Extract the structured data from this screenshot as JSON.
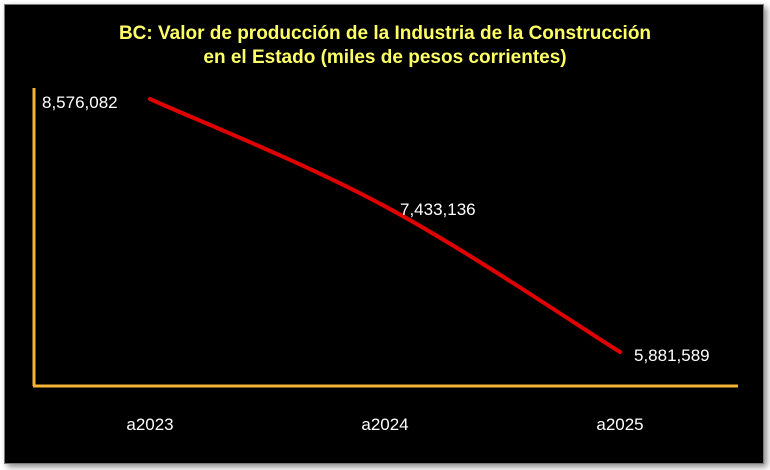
{
  "chart_data": {
    "type": "line",
    "title_lines": [
      "BC: Valor de producción de la Industria de la Construcción",
      "en el Estado (miles de pesos corrientes)"
    ],
    "categories": [
      "a2023",
      "a2024",
      "a2025"
    ],
    "values": [
      8576082,
      7433136,
      5881589
    ],
    "value_labels": [
      "8,576,082",
      "7,433,136",
      "5,881,589"
    ],
    "xlabel": "",
    "ylabel": "",
    "grid": false,
    "legend": "none",
    "colors": {
      "background": "#000000",
      "title": "#ffff66",
      "axis": "#f5b335",
      "line": "#e00000",
      "text": "#ffffff"
    }
  }
}
